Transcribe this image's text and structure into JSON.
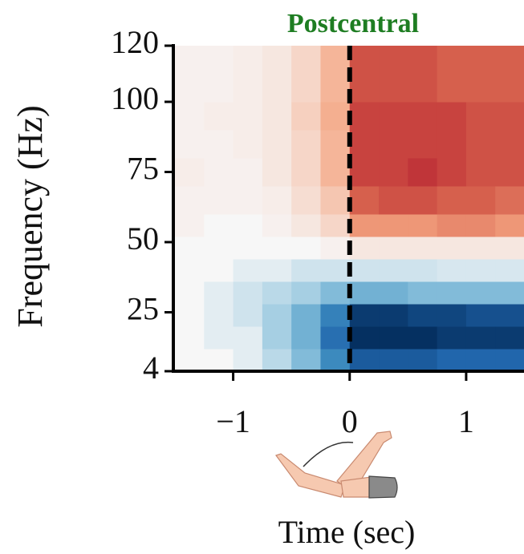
{
  "chart_data": {
    "type": "heatmap",
    "title": "Postcentral",
    "xlabel": "Time (sec)",
    "ylabel": "Frequency (Hz)",
    "x": [
      -1.5,
      -1.25,
      -1,
      -0.75,
      -0.5,
      -0.25,
      0,
      0.25,
      0.5,
      0.75,
      1,
      1.25,
      1.5
    ],
    "y": [
      4,
      12,
      20,
      28,
      36,
      44,
      52,
      60,
      70,
      80,
      90,
      100,
      110,
      120
    ],
    "values": [
      [
        0,
        0,
        -0.05,
        -0.15,
        -0.3,
        -0.55,
        -0.8,
        -0.8,
        -0.8,
        -0.75,
        -0.75,
        -0.75
      ],
      [
        0,
        -0.05,
        -0.05,
        -0.2,
        -0.35,
        -0.7,
        -1,
        -1,
        -1,
        -0.95,
        -0.95,
        -0.95
      ],
      [
        0,
        -0.05,
        -0.1,
        -0.2,
        -0.35,
        -0.6,
        -0.95,
        -0.95,
        -0.9,
        -0.9,
        -0.85,
        -0.85
      ],
      [
        0,
        -0.05,
        -0.1,
        -0.15,
        -0.2,
        -0.3,
        -0.35,
        -0.35,
        -0.3,
        -0.3,
        -0.3,
        -0.3
      ],
      [
        0,
        0,
        -0.05,
        -0.05,
        -0.1,
        -0.1,
        -0.1,
        -0.1,
        -0.1,
        -0.08,
        -0.08,
        -0.08
      ],
      [
        0,
        0,
        0,
        0,
        0,
        0.02,
        0.05,
        0.05,
        0.05,
        0.05,
        0.05,
        0.05
      ],
      [
        0.02,
        0,
        0,
        0.02,
        0.05,
        0.1,
        0.3,
        0.3,
        0.3,
        0.35,
        0.35,
        0.3
      ],
      [
        0.02,
        0.02,
        0.02,
        0.03,
        0.08,
        0.15,
        0.5,
        0.55,
        0.55,
        0.5,
        0.5,
        0.45
      ],
      [
        0.03,
        0.02,
        0.02,
        0.05,
        0.1,
        0.2,
        0.6,
        0.6,
        0.65,
        0.6,
        0.55,
        0.55
      ],
      [
        0.02,
        0.02,
        0.03,
        0.05,
        0.1,
        0.2,
        0.6,
        0.6,
        0.6,
        0.6,
        0.55,
        0.55
      ],
      [
        0.02,
        0.03,
        0.03,
        0.05,
        0.12,
        0.22,
        0.6,
        0.6,
        0.6,
        0.6,
        0.55,
        0.55
      ],
      [
        0.02,
        0.02,
        0.03,
        0.05,
        0.1,
        0.2,
        0.55,
        0.55,
        0.55,
        0.5,
        0.5,
        0.5
      ],
      [
        0.02,
        0.02,
        0.03,
        0.05,
        0.1,
        0.2,
        0.55,
        0.55,
        0.55,
        0.5,
        0.5,
        0.5
      ]
    ],
    "vlim": [
      -1,
      1
    ],
    "colormap": [
      "#053061",
      "#2166ac",
      "#4393c3",
      "#92c5de",
      "#f7f7f7",
      "#f4a582",
      "#d6604d",
      "#b2182b",
      "#67001f"
    ],
    "xlim": [
      -1.5,
      1.5
    ],
    "ylim": [
      4,
      120
    ],
    "xticks": [
      {
        "value": -1,
        "label": "−1"
      },
      0,
      1
    ],
    "yticks": [
      4,
      25,
      50,
      75,
      100,
      120
    ],
    "vline": 0
  }
}
